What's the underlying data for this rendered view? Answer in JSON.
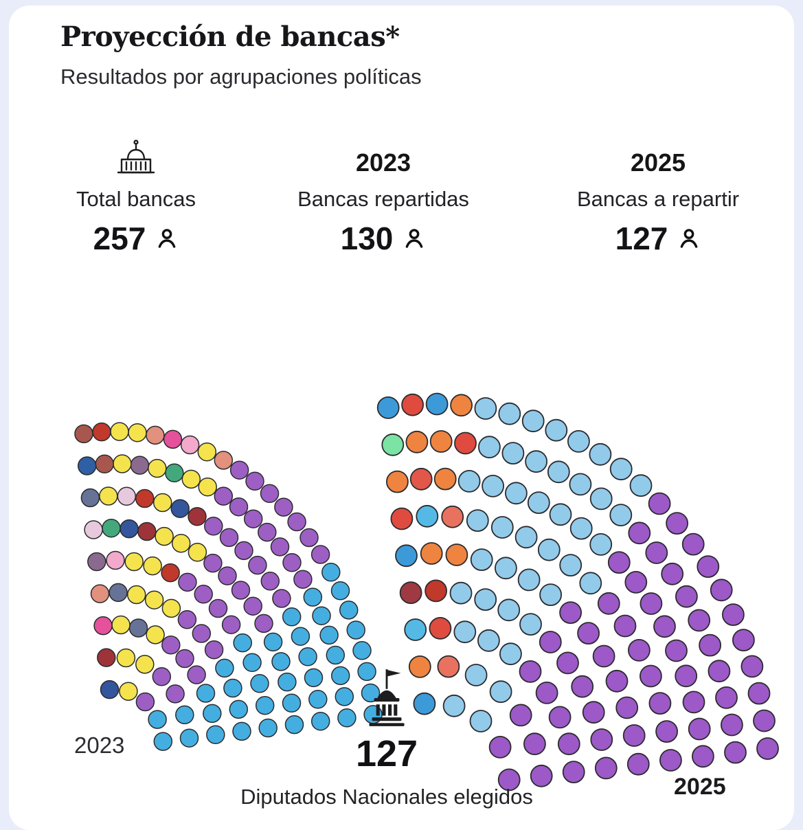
{
  "page": {
    "background": "#e9edfa",
    "card_color": "#ffffff",
    "title": "Proyección de bancas*",
    "subtitle": "Resultados por agrupaciones políticas"
  },
  "stats": [
    {
      "icon": "capitol-building",
      "label": "Total bancas",
      "value": "257"
    },
    {
      "year": "2023",
      "label": "Bancas repartidas",
      "value": "130"
    },
    {
      "year": "2025",
      "label": "Bancas a repartir",
      "value": "127"
    }
  ],
  "chart_data": {
    "type": "parliament",
    "title": "Proyección de bancas*",
    "subtitle": "Resultados por agrupaciones políticas",
    "total_seats": 257,
    "seats_allocated_2023": 130,
    "seats_up_for_election_2025": 127,
    "center_label": {
      "value": "127",
      "caption": "Diputados Nacionales elegidos"
    },
    "fans": [
      {
        "label": "2023",
        "total": 130,
        "orientation": "bottom-left",
        "parties": [
          {
            "id": "light-blue",
            "color": "#45AEE0",
            "seats": 42
          },
          {
            "id": "purple",
            "color": "#9D5FC4",
            "seats": 38
          },
          {
            "id": "yellow-and-others-mottled",
            "seats": 50,
            "colors": [
              "#F4E34D",
              "#F4E34D",
              "#E2917E",
              "#F4E34D",
              "#F4E34D",
              "#9E3439",
              "#F4E34D",
              "#F4E34D",
              "#C0392B",
              "#F4E34D",
              "#F4E34D",
              "#33569C",
              "#F4E34D",
              "#F2A9CB",
              "#F4E34D",
              "#F4E34D",
              "#43A97C",
              "#F4E34D",
              "#667396",
              "#F4E34D",
              "#E5519A",
              "#F4E34D",
              "#9E3439",
              "#F4E34D",
              "#E2917E",
              "#F4E34D",
              "#C0392B",
              "#F4E34D",
              "#8B6A8F",
              "#F4E34D",
              "#33569C",
              "#F4E34D",
              "#E7C9DD",
              "#F4E34D",
              "#667396",
              "#F4E34D",
              "#F2A9CB",
              "#43A97C",
              "#F4E34D",
              "#A8574E",
              "#C0392B",
              "#33569C",
              "#9E3439",
              "#E5519A",
              "#E2917E",
              "#8B6A8F",
              "#E7C9DD",
              "#667396",
              "#2F5FA5",
              "#A8574E"
            ]
          }
        ]
      },
      {
        "label": "2025",
        "total": 127,
        "orientation": "bottom-left",
        "parties": [
          {
            "id": "mixed-top",
            "seats": 24,
            "colors": [
              "#3D9AD9",
              "#EE8440",
              "#55B9E6",
              "#A03A42",
              "#3D9AD9",
              "#E04B3F",
              "#EE8440",
              "#7BE3A3",
              "#3D9AD9",
              "#E04B3F",
              "#EE8440",
              "#E2574A",
              "#55B9E6",
              "#EE8440",
              "#C0392B",
              "#3D9AD9",
              "#EE8440",
              "#E04B3F",
              "#EE8440",
              "#E8725F",
              "#EE8440",
              "#E04B3F",
              "#EE8440",
              "#E8725F"
            ]
          },
          {
            "id": "sky-blue",
            "color": "#92CAEA",
            "seats": 43
          },
          {
            "id": "purple",
            "color": "#9C59C7",
            "seats": 60
          }
        ]
      }
    ]
  }
}
